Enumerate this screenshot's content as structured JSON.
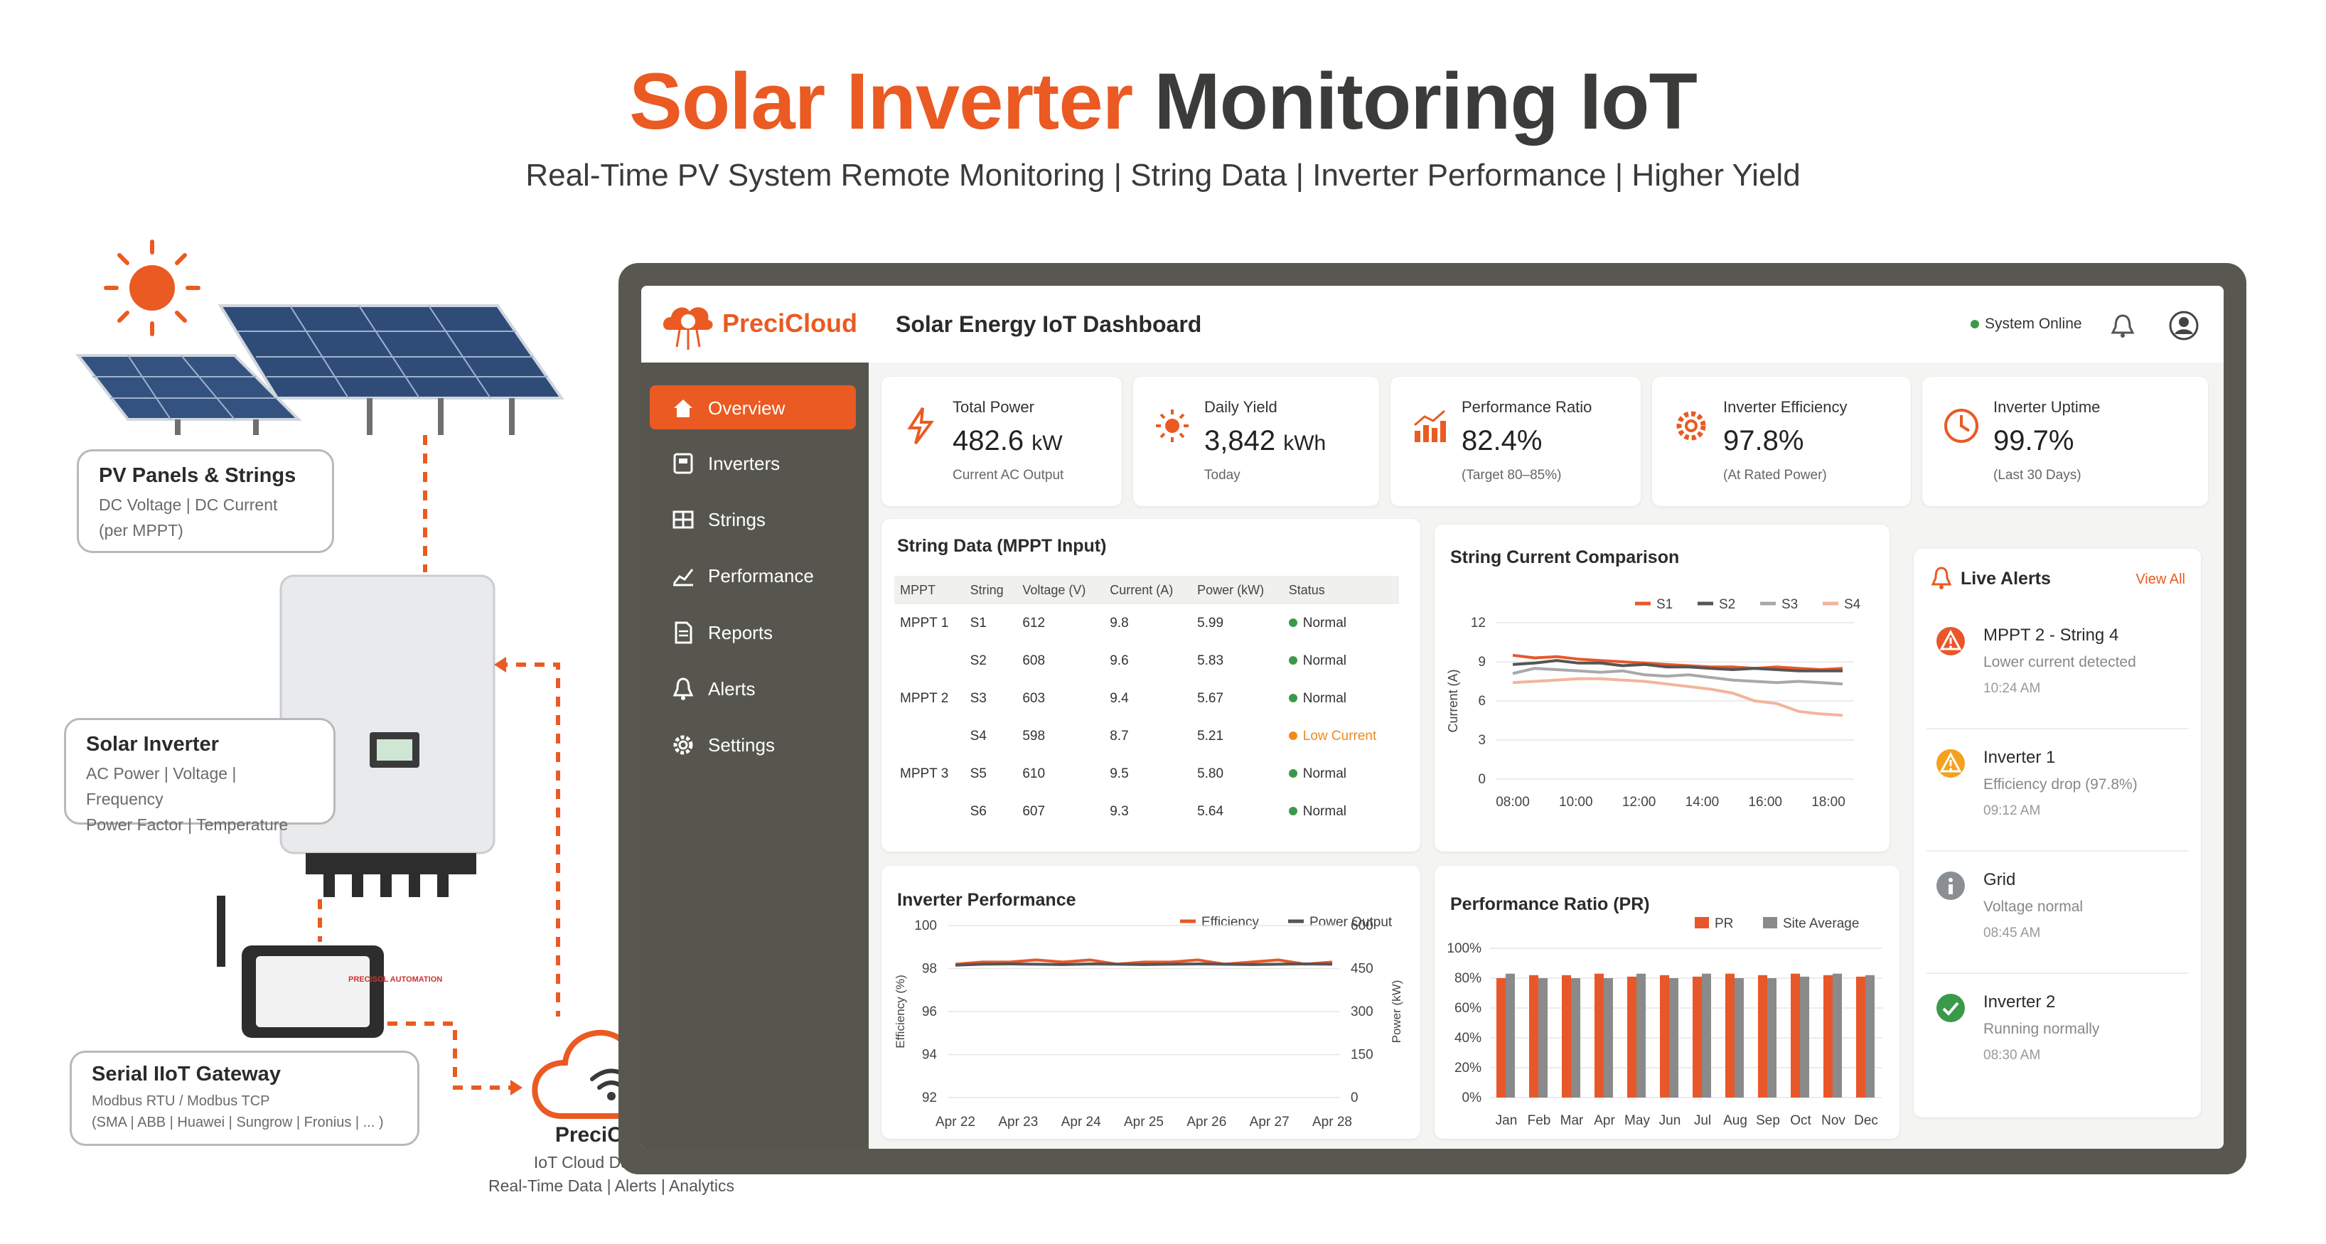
{
  "header": {
    "title_part1": "Solar Inverter",
    "title_part2": "Monitoring IoT",
    "subtitle": "Real-Time PV System Remote Monitoring | String Data | Inverter Performance | Higher Yield"
  },
  "diagram": {
    "pv": {
      "title": "PV Panels & Strings",
      "line1": "DC Voltage | DC Current",
      "line2": "(per MPPT)"
    },
    "inverter": {
      "title": "Solar Inverter",
      "line1": "AC Power | Voltage | Frequency",
      "line2": "Power Factor | Temperature"
    },
    "gateway": {
      "title": "Serial IIoT Gateway",
      "line1": "Modbus RTU / Modbus TCP",
      "line2": "(SMA | ABB | Huawei | Sungrow | Fronius | ... )",
      "device_label": "PRECISOL AUTOMATION"
    },
    "cloud": {
      "title": "PreciCloud",
      "line1": "IoT Cloud Dashboard",
      "line2": "Real-Time Data | Alerts | Analytics"
    }
  },
  "app": {
    "brand": "PreciCloud",
    "title": "Solar Energy IoT Dashboard",
    "status": "System Online",
    "colors": {
      "accent": "#ea5a22",
      "sidebar": "#56564f",
      "ok": "#3a9a4a",
      "warn": "#f08a1a"
    }
  },
  "sidebar": {
    "items": [
      {
        "label": "Overview",
        "icon": "home-icon"
      },
      {
        "label": "Inverters",
        "icon": "inverter-icon"
      },
      {
        "label": "Strings",
        "icon": "strings-icon"
      },
      {
        "label": "Performance",
        "icon": "performance-icon"
      },
      {
        "label": "Reports",
        "icon": "reports-icon"
      },
      {
        "label": "Alerts",
        "icon": "alerts-icon"
      },
      {
        "label": "Settings",
        "icon": "settings-icon"
      }
    ]
  },
  "kpis": [
    {
      "label": "Total Power",
      "value": "482.6",
      "unit": "kW",
      "sub": "Current AC Output",
      "icon": "lightning-icon"
    },
    {
      "label": "Daily Yield",
      "value": "3,842",
      "unit": "kWh",
      "sub": "Today",
      "icon": "sun-icon"
    },
    {
      "label": "Performance Ratio",
      "value": "82.4%",
      "unit": "",
      "sub": "(Target 80–85%)",
      "icon": "bar-chart-icon"
    },
    {
      "label": "Inverter Efficiency",
      "value": "97.8%",
      "unit": "",
      "sub": "(At Rated Power)",
      "icon": "gear-icon"
    },
    {
      "label": "Inverter Uptime",
      "value": "99.7%",
      "unit": "",
      "sub": "(Last 30 Days)",
      "icon": "clock-icon"
    }
  ],
  "string_table": {
    "title": "String Data (MPPT Input)",
    "headers": [
      "MPPT",
      "String",
      "Voltage (V)",
      "Current (A)",
      "Power (kW)",
      "Status"
    ],
    "rows": [
      {
        "mppt": "MPPT 1",
        "string": "S1",
        "voltage": "612",
        "current": "9.8",
        "power": "5.99",
        "status": "Normal",
        "state": "ok"
      },
      {
        "mppt": "",
        "string": "S2",
        "voltage": "608",
        "current": "9.6",
        "power": "5.83",
        "status": "Normal",
        "state": "ok"
      },
      {
        "mppt": "MPPT 2",
        "string": "S3",
        "voltage": "603",
        "current": "9.4",
        "power": "5.67",
        "status": "Normal",
        "state": "ok"
      },
      {
        "mppt": "",
        "string": "S4",
        "voltage": "598",
        "current": "8.7",
        "power": "5.21",
        "status": "Low Current",
        "state": "warn"
      },
      {
        "mppt": "MPPT 3",
        "string": "S5",
        "voltage": "610",
        "current": "9.5",
        "power": "5.80",
        "status": "Normal",
        "state": "ok"
      },
      {
        "mppt": "",
        "string": "S6",
        "voltage": "607",
        "current": "9.3",
        "power": "5.64",
        "status": "Normal",
        "state": "ok"
      }
    ]
  },
  "alerts": {
    "title": "Live Alerts",
    "view_all": "View All",
    "items": [
      {
        "title": "MPPT 2 - String 4",
        "desc": "Lower current detected",
        "time": "10:24 AM",
        "icon": "warning-icon",
        "color": "#e8572a"
      },
      {
        "title": "Inverter 1",
        "desc": "Efficiency drop (97.8%)",
        "time": "09:12 AM",
        "icon": "warning-icon",
        "color": "#f5a01e"
      },
      {
        "title": "Grid",
        "desc": "Voltage normal",
        "time": "08:45 AM",
        "icon": "info-icon",
        "color": "#8a8f94"
      },
      {
        "title": "Inverter 2",
        "desc": "Running normally",
        "time": "08:30 AM",
        "icon": "check-icon",
        "color": "#3a9a4a"
      }
    ]
  },
  "chart_data": [
    {
      "type": "line",
      "title": "String Current Comparison",
      "ylabel": "Current (A)",
      "ylim": [
        0,
        12
      ],
      "yticks": [
        0,
        3,
        6,
        9,
        12
      ],
      "xticks": [
        "08:00",
        "10:00",
        "12:00",
        "14:00",
        "16:00",
        "18:00"
      ],
      "legend": "top-right",
      "series": [
        {
          "name": "S1",
          "color": "#e8572a",
          "values": [
            9.5,
            9.3,
            9.4,
            9.2,
            9.1,
            9.0,
            8.9,
            8.8,
            8.7,
            8.6,
            8.6,
            8.5,
            8.6,
            8.5,
            8.4,
            8.5
          ]
        },
        {
          "name": "S2",
          "color": "#555555",
          "values": [
            8.8,
            8.9,
            9.1,
            8.9,
            8.9,
            8.7,
            8.8,
            8.6,
            8.6,
            8.5,
            8.4,
            8.5,
            8.4,
            8.3,
            8.3,
            8.3
          ]
        },
        {
          "name": "S3",
          "color": "#a8a8a8",
          "values": [
            8.1,
            8.5,
            8.4,
            8.3,
            8.2,
            8.3,
            8.0,
            7.9,
            8.0,
            7.8,
            7.6,
            7.5,
            7.4,
            7.5,
            7.4,
            7.3
          ]
        },
        {
          "name": "S4",
          "color": "#f3b49b",
          "values": [
            7.4,
            7.5,
            7.6,
            7.7,
            7.7,
            7.6,
            7.5,
            7.3,
            7.1,
            6.9,
            6.6,
            6.0,
            5.8,
            5.2,
            5.0,
            4.9
          ]
        }
      ]
    },
    {
      "type": "line",
      "title": "Inverter Performance",
      "ylabel": "Efficiency (%)",
      "y2label": "Power (kW)",
      "ylim": [
        92,
        100
      ],
      "yticks": [
        92,
        94,
        96,
        98,
        100
      ],
      "y2lim": [
        0,
        600
      ],
      "y2ticks": [
        0,
        150,
        300,
        450,
        600
      ],
      "xticks": [
        "Apr 22",
        "Apr 23",
        "Apr 24",
        "Apr 25",
        "Apr 26",
        "Apr 27",
        "Apr 28"
      ],
      "legend": "top-right",
      "series": [
        {
          "name": "Efficiency",
          "color": "#e8572a",
          "axis": "left",
          "values": [
            98.2,
            98.3,
            98.3,
            98.4,
            98.3,
            98.4,
            98.2,
            98.3,
            98.3,
            98.4,
            98.2,
            98.3,
            98.4,
            98.2,
            98.3
          ]
        },
        {
          "name": "Power Output",
          "color": "#555555",
          "axis": "right",
          "values": [
            462,
            465,
            466,
            465,
            464,
            466,
            465,
            464,
            465,
            466,
            465,
            464,
            465,
            466,
            465
          ]
        }
      ]
    },
    {
      "type": "bar",
      "title": "Performance Ratio (PR)",
      "ylim": [
        0,
        100
      ],
      "yticks": [
        "0%",
        "20%",
        "40%",
        "60%",
        "80%",
        "100%"
      ],
      "categories": [
        "Jan",
        "Feb",
        "Mar",
        "Apr",
        "May",
        "Jun",
        "Jul",
        "Aug",
        "Sep",
        "Oct",
        "Nov",
        "Dec"
      ],
      "legend": "top-right",
      "series": [
        {
          "name": "PR",
          "color": "#e8572a",
          "values": [
            80,
            82,
            82,
            83,
            81,
            82,
            81,
            83,
            82,
            83,
            82,
            81
          ]
        },
        {
          "name": "Site Average",
          "color": "#8a8a8a",
          "values": [
            83,
            80,
            80,
            80,
            83,
            80,
            83,
            80,
            80,
            81,
            83,
            82
          ]
        }
      ]
    }
  ]
}
